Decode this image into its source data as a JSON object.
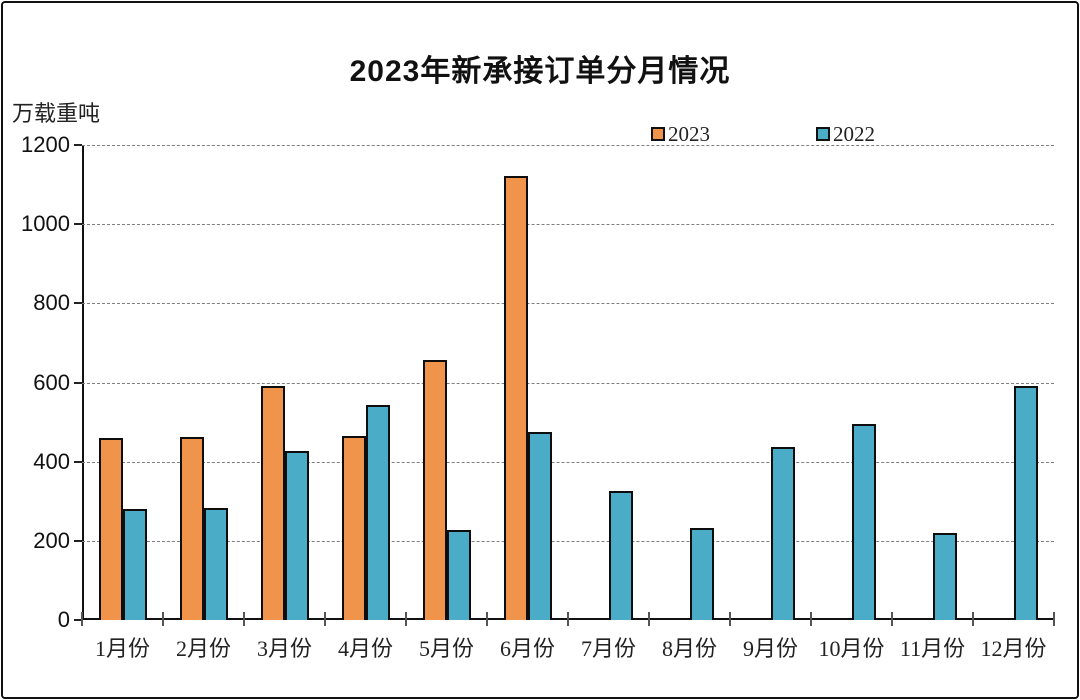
{
  "chart_data": {
    "type": "bar",
    "title": "2023年新承接订单分月情况",
    "unit_label": "万载重吨",
    "categories": [
      "1月份",
      "2月份",
      "3月份",
      "4月份",
      "5月份",
      "6月份",
      "7月份",
      "8月份",
      "9月份",
      "10月份",
      "11月份",
      "12月份"
    ],
    "series": [
      {
        "name": "2023",
        "color": "#F0944B",
        "values": [
          460,
          463,
          590,
          465,
          658,
          1122,
          null,
          null,
          null,
          null,
          null,
          null
        ]
      },
      {
        "name": "2022",
        "color": "#4AACC6",
        "values": [
          281,
          284,
          426,
          542,
          228,
          476,
          326,
          232,
          438,
          494,
          220,
          590
        ]
      }
    ],
    "ylim": [
      0,
      1200
    ],
    "y_step": 200,
    "grid": "horizontal-dashed",
    "legend_position": "top-right",
    "axis_color": "#111111",
    "gridline_color": "#7f7f7f"
  }
}
